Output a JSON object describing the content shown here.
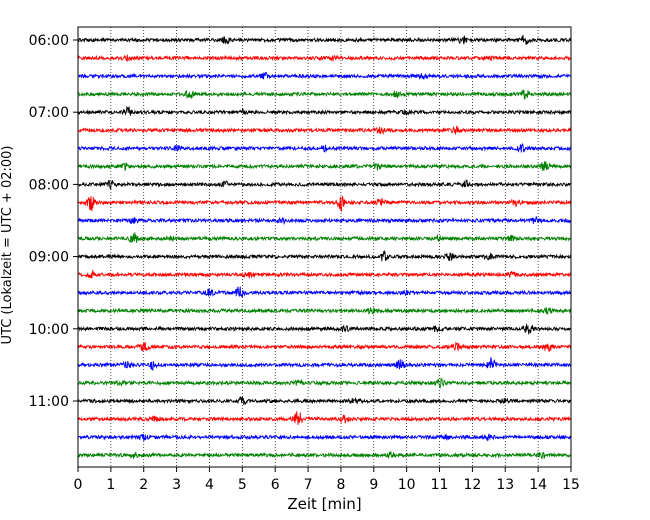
{
  "chart_data": {
    "type": "line",
    "title": "",
    "xlabel": "Zeit  [min]",
    "ylabel": "UTC (Lokalzeit = UTC + 02:00)",
    "xlim": [
      0,
      15
    ],
    "x_ticks": [
      0,
      1,
      2,
      3,
      4,
      5,
      6,
      7,
      8,
      9,
      10,
      11,
      12,
      13,
      14,
      15
    ],
    "x_tick_labels": [
      "0",
      "1",
      "2",
      "3",
      "4",
      "5",
      "6",
      "7",
      "8",
      "9",
      "10",
      "11",
      "12",
      "13",
      "14",
      "15"
    ],
    "y_tick_labels": [
      "06:00",
      "07:00",
      "08:00",
      "09:00",
      "10:00",
      "11:00"
    ],
    "grid": "vertical dotted at each minute",
    "trace_colors": [
      "#000000",
      "#ff0000",
      "#0000ff",
      "#008000"
    ],
    "traces": [
      {
        "start": "06:00",
        "events": [
          {
            "x": 4.5,
            "a": 0.5
          },
          {
            "x": 11.7,
            "a": 0.5
          },
          {
            "x": 13.6,
            "a": 0.6
          }
        ]
      },
      {
        "start": "06:15",
        "events": [
          {
            "x": 1.5,
            "a": 0.3
          },
          {
            "x": 7.8,
            "a": 0.4
          },
          {
            "x": 12.5,
            "a": 0.3
          }
        ]
      },
      {
        "start": "06:30",
        "events": [
          {
            "x": 5.7,
            "a": 0.4
          },
          {
            "x": 10.5,
            "a": 0.3
          }
        ]
      },
      {
        "start": "06:45",
        "events": [
          {
            "x": 3.4,
            "a": 0.5
          },
          {
            "x": 9.7,
            "a": 0.4
          },
          {
            "x": 13.6,
            "a": 0.6
          }
        ]
      },
      {
        "start": "07:00",
        "events": [
          {
            "x": 1.5,
            "a": 0.6
          },
          {
            "x": 5.0,
            "a": 0.3
          },
          {
            "x": 10.0,
            "a": 0.3
          }
        ]
      },
      {
        "start": "07:15",
        "events": [
          {
            "x": 9.2,
            "a": 0.4
          },
          {
            "x": 11.5,
            "a": 0.4
          }
        ]
      },
      {
        "start": "07:30",
        "events": [
          {
            "x": 3.0,
            "a": 0.3
          },
          {
            "x": 7.5,
            "a": 0.3
          },
          {
            "x": 13.5,
            "a": 0.4
          }
        ]
      },
      {
        "start": "07:45",
        "events": [
          {
            "x": 1.4,
            "a": 0.4
          },
          {
            "x": 9.1,
            "a": 0.5
          },
          {
            "x": 14.2,
            "a": 0.6
          }
        ]
      },
      {
        "start": "08:00",
        "events": [
          {
            "x": 1.0,
            "a": 0.5
          },
          {
            "x": 4.5,
            "a": 0.3
          },
          {
            "x": 11.8,
            "a": 0.4
          }
        ]
      },
      {
        "start": "08:15",
        "events": [
          {
            "x": 0.4,
            "a": 1.0
          },
          {
            "x": 8.0,
            "a": 1.0
          },
          {
            "x": 9.2,
            "a": 0.4
          },
          {
            "x": 13.3,
            "a": 0.4
          }
        ]
      },
      {
        "start": "08:30",
        "events": [
          {
            "x": 1.7,
            "a": 0.4
          },
          {
            "x": 6.2,
            "a": 0.3
          },
          {
            "x": 13.9,
            "a": 0.4
          }
        ]
      },
      {
        "start": "08:45",
        "events": [
          {
            "x": 1.7,
            "a": 0.7
          },
          {
            "x": 2.8,
            "a": 0.4
          },
          {
            "x": 10.9,
            "a": 0.4
          },
          {
            "x": 13.2,
            "a": 0.3
          }
        ]
      },
      {
        "start": "09:00",
        "events": [
          {
            "x": 9.3,
            "a": 0.6
          },
          {
            "x": 11.3,
            "a": 0.4
          },
          {
            "x": 12.5,
            "a": 0.4
          }
        ]
      },
      {
        "start": "09:15",
        "events": [
          {
            "x": 0.4,
            "a": 0.4
          },
          {
            "x": 5.2,
            "a": 0.3
          },
          {
            "x": 13.2,
            "a": 0.3
          }
        ]
      },
      {
        "start": "09:30",
        "events": [
          {
            "x": 4.0,
            "a": 0.4
          },
          {
            "x": 4.9,
            "a": 0.8
          },
          {
            "x": 10.0,
            "a": 0.3
          }
        ]
      },
      {
        "start": "09:45",
        "events": [
          {
            "x": 8.9,
            "a": 0.4
          },
          {
            "x": 14.3,
            "a": 0.3
          }
        ]
      },
      {
        "start": "10:00",
        "events": [
          {
            "x": 8.1,
            "a": 0.4
          },
          {
            "x": 10.9,
            "a": 0.4
          },
          {
            "x": 13.7,
            "a": 0.6
          }
        ]
      },
      {
        "start": "10:15",
        "events": [
          {
            "x": 2.0,
            "a": 0.6
          },
          {
            "x": 11.5,
            "a": 0.5
          },
          {
            "x": 14.3,
            "a": 0.6
          }
        ]
      },
      {
        "start": "10:30",
        "events": [
          {
            "x": 1.5,
            "a": 0.4
          },
          {
            "x": 2.3,
            "a": 0.6
          },
          {
            "x": 9.8,
            "a": 0.6
          },
          {
            "x": 12.6,
            "a": 0.9
          }
        ]
      },
      {
        "start": "10:45",
        "events": [
          {
            "x": 1.3,
            "a": 0.3
          },
          {
            "x": 11.0,
            "a": 0.6
          },
          {
            "x": 6.7,
            "a": 0.3
          }
        ]
      },
      {
        "start": "11:00",
        "events": [
          {
            "x": 5.0,
            "a": 0.5
          },
          {
            "x": 8.4,
            "a": 0.4
          },
          {
            "x": 13.0,
            "a": 0.3
          }
        ]
      },
      {
        "start": "11:15",
        "events": [
          {
            "x": 6.7,
            "a": 1.2
          },
          {
            "x": 8.1,
            "a": 0.4
          },
          {
            "x": 2.3,
            "a": 0.3
          }
        ]
      },
      {
        "start": "11:30",
        "events": [
          {
            "x": 2.0,
            "a": 0.4
          },
          {
            "x": 11.2,
            "a": 0.3
          },
          {
            "x": 12.5,
            "a": 0.3
          }
        ]
      },
      {
        "start": "11:45",
        "events": [
          {
            "x": 1.7,
            "a": 0.3
          },
          {
            "x": 9.5,
            "a": 0.3
          },
          {
            "x": 14.1,
            "a": 0.3
          }
        ]
      }
    ]
  }
}
